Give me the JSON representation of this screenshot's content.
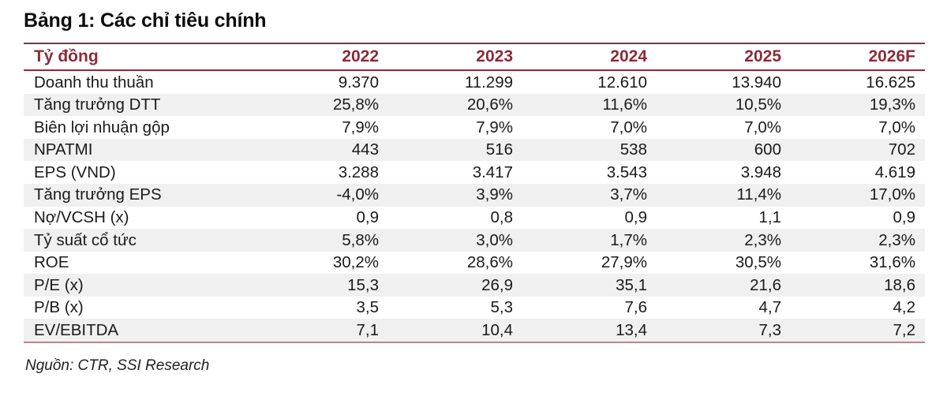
{
  "title": "Bảng 1: Các chỉ tiêu chính",
  "table": {
    "unit_header": "Tỷ đồng",
    "year_headers": [
      "2022",
      "2023",
      "2024",
      "2025",
      "2026F"
    ],
    "rows": [
      {
        "label": "Doanh thu thuần",
        "values": [
          "9.370",
          "11.299",
          "12.610",
          "13.940",
          "16.625"
        ]
      },
      {
        "label": "Tăng trưởng DTT",
        "values": [
          "25,8%",
          "20,6%",
          "11,6%",
          "10,5%",
          "19,3%"
        ]
      },
      {
        "label": "Biên lợi nhuận gộp",
        "values": [
          "7,9%",
          "7,9%",
          "7,0%",
          "7,0%",
          "7,0%"
        ]
      },
      {
        "label": "NPATMI",
        "values": [
          "443",
          "516",
          "538",
          "600",
          "702"
        ]
      },
      {
        "label": "EPS (VND)",
        "values": [
          "3.288",
          "3.417",
          "3.543",
          "3.948",
          "4.619"
        ]
      },
      {
        "label": "Tăng trưởng EPS",
        "values": [
          "-4,0%",
          "3,9%",
          "3,7%",
          "11,4%",
          "17,0%"
        ]
      },
      {
        "label": "Nợ/VCSH (x)",
        "values": [
          "0,9",
          "0,8",
          "0,9",
          "1,1",
          "0,9"
        ]
      },
      {
        "label": "Tỷ suất cổ tức",
        "values": [
          "5,8%",
          "3,0%",
          "1,7%",
          "2,3%",
          "2,3%"
        ]
      },
      {
        "label": "ROE",
        "values": [
          "30,2%",
          "28,6%",
          "27,9%",
          "30,5%",
          "31,6%"
        ]
      },
      {
        "label": "P/E (x)",
        "values": [
          "15,3",
          "26,9",
          "35,1",
          "21,6",
          "18,6"
        ]
      },
      {
        "label": "P/B (x)",
        "values": [
          "3,5",
          "5,3",
          "7,6",
          "4,7",
          "4,2"
        ]
      },
      {
        "label": "EV/EBITDA",
        "values": [
          "7,1",
          "10,4",
          "13,4",
          "7,3",
          "7,2"
        ]
      }
    ]
  },
  "source_note": "Nguồn: CTR, SSI Research",
  "colors": {
    "accent": "#8c2b3a",
    "rule_light": "#b38891",
    "row_alt": "#f0f0f0",
    "text": "#1a1a1a"
  }
}
